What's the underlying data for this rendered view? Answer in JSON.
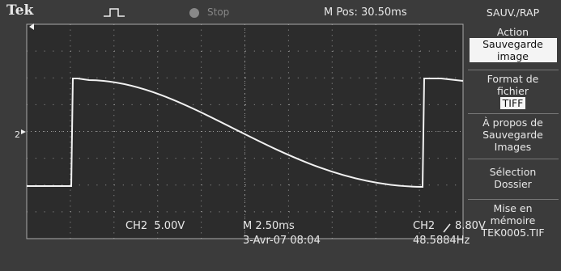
{
  "header": {
    "brand": "Tek",
    "status": "Stop",
    "position": "M Pos: 30.50ms"
  },
  "channel_marker": "2",
  "menu": {
    "title": "SAUV./RAP",
    "items": [
      {
        "label": "Action",
        "value": "Sauvegarde image"
      },
      {
        "label": "Format de fichier",
        "value": "TIFF"
      },
      {
        "label": "À propos de Sauvegarde Images"
      },
      {
        "label": "Sélection Dossier"
      },
      {
        "label": "Mise en mémoire",
        "value": "TEK0005.TIF"
      }
    ]
  },
  "footer": {
    "channel_scale": "CH2  5.00V",
    "timebase": "M 2.50ms",
    "date": "3-Avr-07 08:04",
    "trigger_source": "CH2",
    "trigger_level": "8.80V",
    "frequency": "48.5884Hz"
  }
}
